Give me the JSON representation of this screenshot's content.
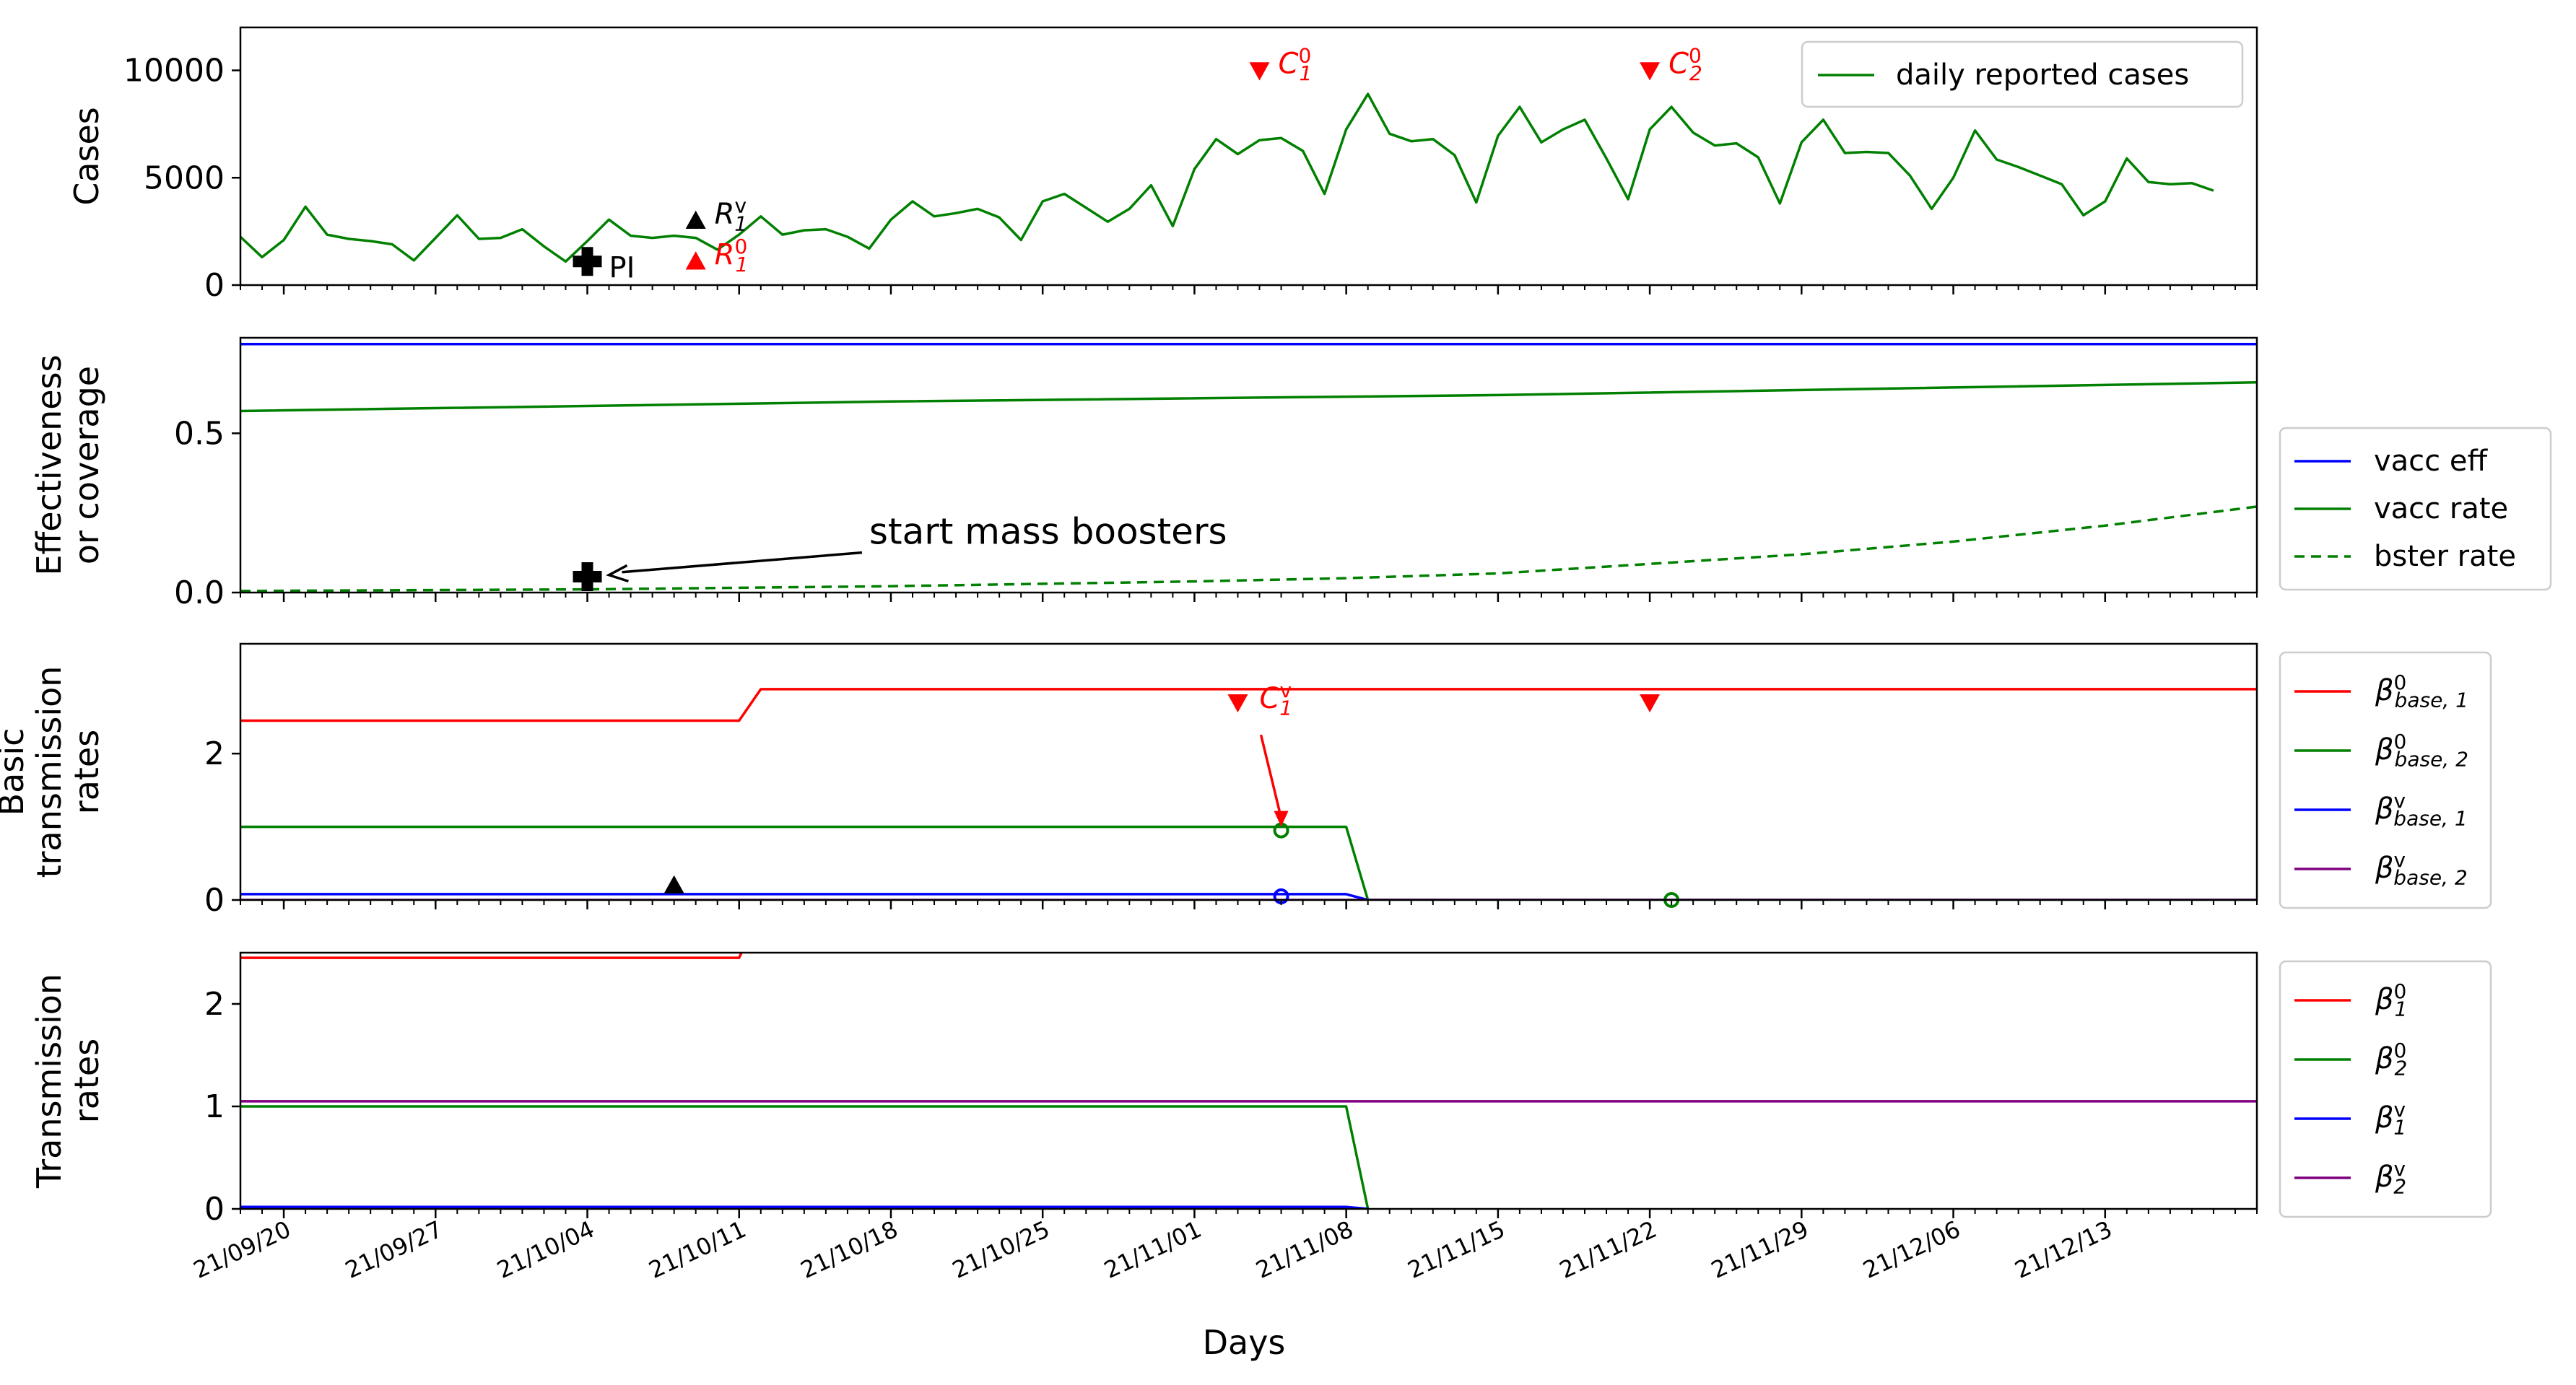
{
  "chart_data": {
    "type": "line",
    "x_axis": {
      "label": "Days",
      "start_date": "2021-09-18",
      "end_date": "2021-12-20",
      "tick_labels": [
        "21/09/20",
        "21/09/27",
        "21/10/04",
        "21/10/11",
        "21/10/18",
        "21/10/25",
        "21/11/01",
        "21/11/08",
        "21/11/15",
        "21/11/22",
        "21/11/29",
        "21/12/06",
        "21/12/13"
      ],
      "tick_dates": [
        "2021-09-20",
        "2021-09-27",
        "2021-10-04",
        "2021-10-11",
        "2021-10-18",
        "2021-10-25",
        "2021-11-01",
        "2021-11-08",
        "2021-11-15",
        "2021-11-22",
        "2021-11-29",
        "2021-12-06",
        "2021-12-13"
      ]
    },
    "panels": [
      {
        "id": "cases",
        "ylabel": [
          "Cases"
        ],
        "ylim": [
          0,
          12000
        ],
        "yticks": [
          0,
          5000,
          10000
        ],
        "ytick_labels": [
          "0",
          "5000",
          "10000"
        ],
        "legend": {
          "placement": "top-right",
          "entries": [
            {
              "label": "daily reported cases",
              "color": "#008000",
              "style": "solid"
            }
          ]
        },
        "series": [
          {
            "name": "daily reported cases",
            "color": "#008000",
            "style": "solid",
            "start_date": "2021-09-18",
            "values": [
              2250,
              1300,
              2100,
              3650,
              2350,
              2150,
              2050,
              1900,
              1150,
              2200,
              3250,
              2150,
              2200,
              2600,
              1800,
              1100,
              2050,
              3050,
              2300,
              2200,
              2300,
              2200,
              1650,
              2350,
              3200,
              2350,
              2550,
              2600,
              2250,
              1700,
              3050,
              3900,
              3200,
              3350,
              3550,
              3150,
              2100,
              3900,
              4250,
              3600,
              2950,
              3550,
              4650,
              2750,
              5400,
              6800,
              6100,
              6750,
              6850,
              6250,
              4250,
              7250,
              8900,
              7050,
              6700,
              6800,
              6050,
              3850,
              6950,
              8300,
              6650,
              7250,
              7700,
              5900,
              4000,
              7250,
              8300,
              7100,
              6500,
              6600,
              5950,
              3800,
              6650,
              7700,
              6150,
              6200,
              6150,
              5100,
              3550,
              5000,
              7200,
              5850,
              5500,
              5100,
              4700,
              3250,
              3900,
              5900,
              4800,
              4700,
              4750,
              4400
            ]
          }
        ],
        "markers": [
          {
            "shape": "plus",
            "date": "2021-10-04",
            "y": 1100,
            "color": "#000000",
            "label": "PI"
          },
          {
            "shape": "triangle-up",
            "date": "2021-10-09",
            "y": 3000,
            "color": "#000000",
            "label": "R",
            "sup": "v",
            "sub": "1"
          },
          {
            "shape": "triangle-up",
            "date": "2021-10-09",
            "y": 1100,
            "color": "#ff0000",
            "label": "R",
            "sup": "0",
            "sub": "1"
          },
          {
            "shape": "triangle-down",
            "date": "2021-11-04",
            "y": 10000,
            "color": "#ff0000",
            "label": "C",
            "sup": "0",
            "sub": "1"
          },
          {
            "shape": "triangle-down",
            "date": "2021-11-22",
            "y": 10000,
            "color": "#ff0000",
            "label": "C",
            "sup": "0",
            "sub": "2"
          }
        ]
      },
      {
        "id": "effectiveness",
        "ylabel": [
          "Effectiveness",
          "or coverage"
        ],
        "ylim": [
          0,
          0.8
        ],
        "yticks": [
          0,
          0.5
        ],
        "ytick_labels": [
          "0.0",
          "0.5"
        ],
        "legend": {
          "placement": "right-outside",
          "entries": [
            {
              "label": "vacc eff",
              "color": "#0000ff",
              "style": "solid"
            },
            {
              "label": "vacc rate",
              "color": "#008000",
              "style": "solid"
            },
            {
              "label": "bster rate",
              "color": "#008000",
              "style": "dashed"
            }
          ]
        },
        "series": [
          {
            "name": "vacc eff",
            "color": "#0000ff",
            "style": "solid",
            "points": [
              [
                "2021-09-18",
                0.78
              ],
              [
                "2021-12-20",
                0.78
              ]
            ]
          },
          {
            "name": "vacc rate",
            "color": "#008000",
            "style": "solid",
            "points": [
              [
                "2021-09-18",
                0.57
              ],
              [
                "2021-10-18",
                0.6
              ],
              [
                "2021-11-15",
                0.62
              ],
              [
                "2021-12-20",
                0.66
              ]
            ]
          },
          {
            "name": "bster rate",
            "color": "#008000",
            "style": "dashed",
            "points": [
              [
                "2021-09-18",
                0.005
              ],
              [
                "2021-10-04",
                0.01
              ],
              [
                "2021-10-18",
                0.02
              ],
              [
                "2021-11-01",
                0.035
              ],
              [
                "2021-11-08",
                0.045
              ],
              [
                "2021-11-15",
                0.06
              ],
              [
                "2021-11-22",
                0.09
              ],
              [
                "2021-11-29",
                0.12
              ],
              [
                "2021-12-06",
                0.16
              ],
              [
                "2021-12-13",
                0.21
              ],
              [
                "2021-12-20",
                0.27
              ]
            ]
          }
        ],
        "markers": [
          {
            "shape": "plus",
            "date": "2021-10-04",
            "y": 0.05,
            "color": "#000000"
          }
        ],
        "annotations": [
          {
            "text": "start mass boosters",
            "text_date": "2021-10-17",
            "text_y": 0.13,
            "arrow_to_date": "2021-10-05",
            "arrow_to_y": 0.055,
            "color": "#000000"
          }
        ]
      },
      {
        "id": "basic",
        "ylabel": [
          "Basic",
          "transmission",
          "rates"
        ],
        "ylim": [
          0,
          3.5
        ],
        "yticks": [
          0,
          2
        ],
        "ytick_labels": [
          "0",
          "2"
        ],
        "legend": {
          "placement": "right-outside",
          "entries": [
            {
              "label": "β",
              "sup": "0",
              "sub": "base, 1",
              "color": "#ff0000",
              "style": "solid"
            },
            {
              "label": "β",
              "sup": "0",
              "sub": "base, 2",
              "color": "#008000",
              "style": "solid"
            },
            {
              "label": "β",
              "sup": "v",
              "sub": "base, 1",
              "color": "#0000ff",
              "style": "solid"
            },
            {
              "label": "β",
              "sup": "v",
              "sub": "base, 2",
              "color": "#800080",
              "style": "solid"
            }
          ]
        },
        "series": [
          {
            "name": "β0 base,1",
            "color": "#ff0000",
            "style": "solid",
            "points": [
              [
                "2021-09-18",
                2.45
              ],
              [
                "2021-10-11",
                2.45
              ],
              [
                "2021-10-12",
                2.88
              ],
              [
                "2021-12-20",
                2.88
              ]
            ]
          },
          {
            "name": "β0 base,2",
            "color": "#008000",
            "style": "solid",
            "points": [
              [
                "2021-09-18",
                1.0
              ],
              [
                "2021-11-08",
                1.0
              ],
              [
                "2021-11-09",
                0.0
              ],
              [
                "2021-12-20",
                0.0
              ]
            ]
          },
          {
            "name": "βv base,1",
            "color": "#0000ff",
            "style": "solid",
            "points": [
              [
                "2021-09-18",
                0.08
              ],
              [
                "2021-11-08",
                0.08
              ],
              [
                "2021-11-09",
                0.0
              ],
              [
                "2021-12-20",
                0.0
              ]
            ]
          },
          {
            "name": "βv base,2",
            "color": "#800080",
            "style": "solid",
            "points": [
              [
                "2021-09-18",
                0.0
              ],
              [
                "2021-12-20",
                0.0
              ]
            ]
          }
        ],
        "markers": [
          {
            "shape": "triangle-up",
            "date": "2021-10-08",
            "y": 0.2,
            "color": "#000000"
          },
          {
            "shape": "triangle-down",
            "date": "2021-11-03",
            "y": 2.7,
            "color": "#ff0000"
          },
          {
            "shape": "triangle-down",
            "date": "2021-11-22",
            "y": 2.7,
            "color": "#ff0000"
          },
          {
            "shape": "circle",
            "date": "2021-11-05",
            "y": 0.95,
            "color": "#008000"
          },
          {
            "shape": "circle",
            "date": "2021-11-05",
            "y": 0.05,
            "color": "#0000ff"
          },
          {
            "shape": "circle",
            "date": "2021-11-23",
            "y": 0.0,
            "color": "#008000"
          }
        ],
        "annotations": [
          {
            "text": "C",
            "sup": "v",
            "sub": "1",
            "text_date": "2021-11-04",
            "text_y": 2.7,
            "arrow_to_date": "2021-11-05",
            "arrow_to_y": 1.0,
            "color": "#ff0000"
          }
        ]
      },
      {
        "id": "transmission",
        "ylabel": [
          "Transmission",
          "rates"
        ],
        "ylim": [
          0,
          2.5
        ],
        "yticks": [
          0,
          1,
          2
        ],
        "ytick_labels": [
          "0",
          "1",
          "2"
        ],
        "legend": {
          "placement": "right-outside",
          "entries": [
            {
              "label": "β",
              "sup": "0",
              "sub": "1",
              "color": "#ff0000",
              "style": "solid"
            },
            {
              "label": "β",
              "sup": "0",
              "sub": "2",
              "color": "#008000",
              "style": "solid"
            },
            {
              "label": "β",
              "sup": "v",
              "sub": "1",
              "color": "#0000ff",
              "style": "solid"
            },
            {
              "label": "β",
              "sup": "v",
              "sub": "2",
              "color": "#800080",
              "style": "solid"
            }
          ]
        },
        "series": [
          {
            "name": "β0 1",
            "color": "#ff0000",
            "style": "solid",
            "points": [
              [
                "2021-09-18",
                2.45
              ],
              [
                "2021-10-11",
                2.45
              ],
              [
                "2021-10-12",
                2.9
              ]
            ]
          },
          {
            "name": "β0 2",
            "color": "#008000",
            "style": "solid",
            "points": [
              [
                "2021-09-18",
                1.0
              ],
              [
                "2021-11-08",
                1.0
              ],
              [
                "2021-11-09",
                0.0
              ]
            ]
          },
          {
            "name": "βv 1",
            "color": "#0000ff",
            "style": "solid",
            "points": [
              [
                "2021-09-18",
                0.02
              ],
              [
                "2021-11-08",
                0.02
              ],
              [
                "2021-11-09",
                0.0
              ]
            ]
          },
          {
            "name": "βv 2",
            "color": "#800080",
            "style": "solid",
            "points": [
              [
                "2021-09-18",
                1.05
              ],
              [
                "2021-12-20",
                1.05
              ]
            ]
          }
        ]
      }
    ]
  }
}
